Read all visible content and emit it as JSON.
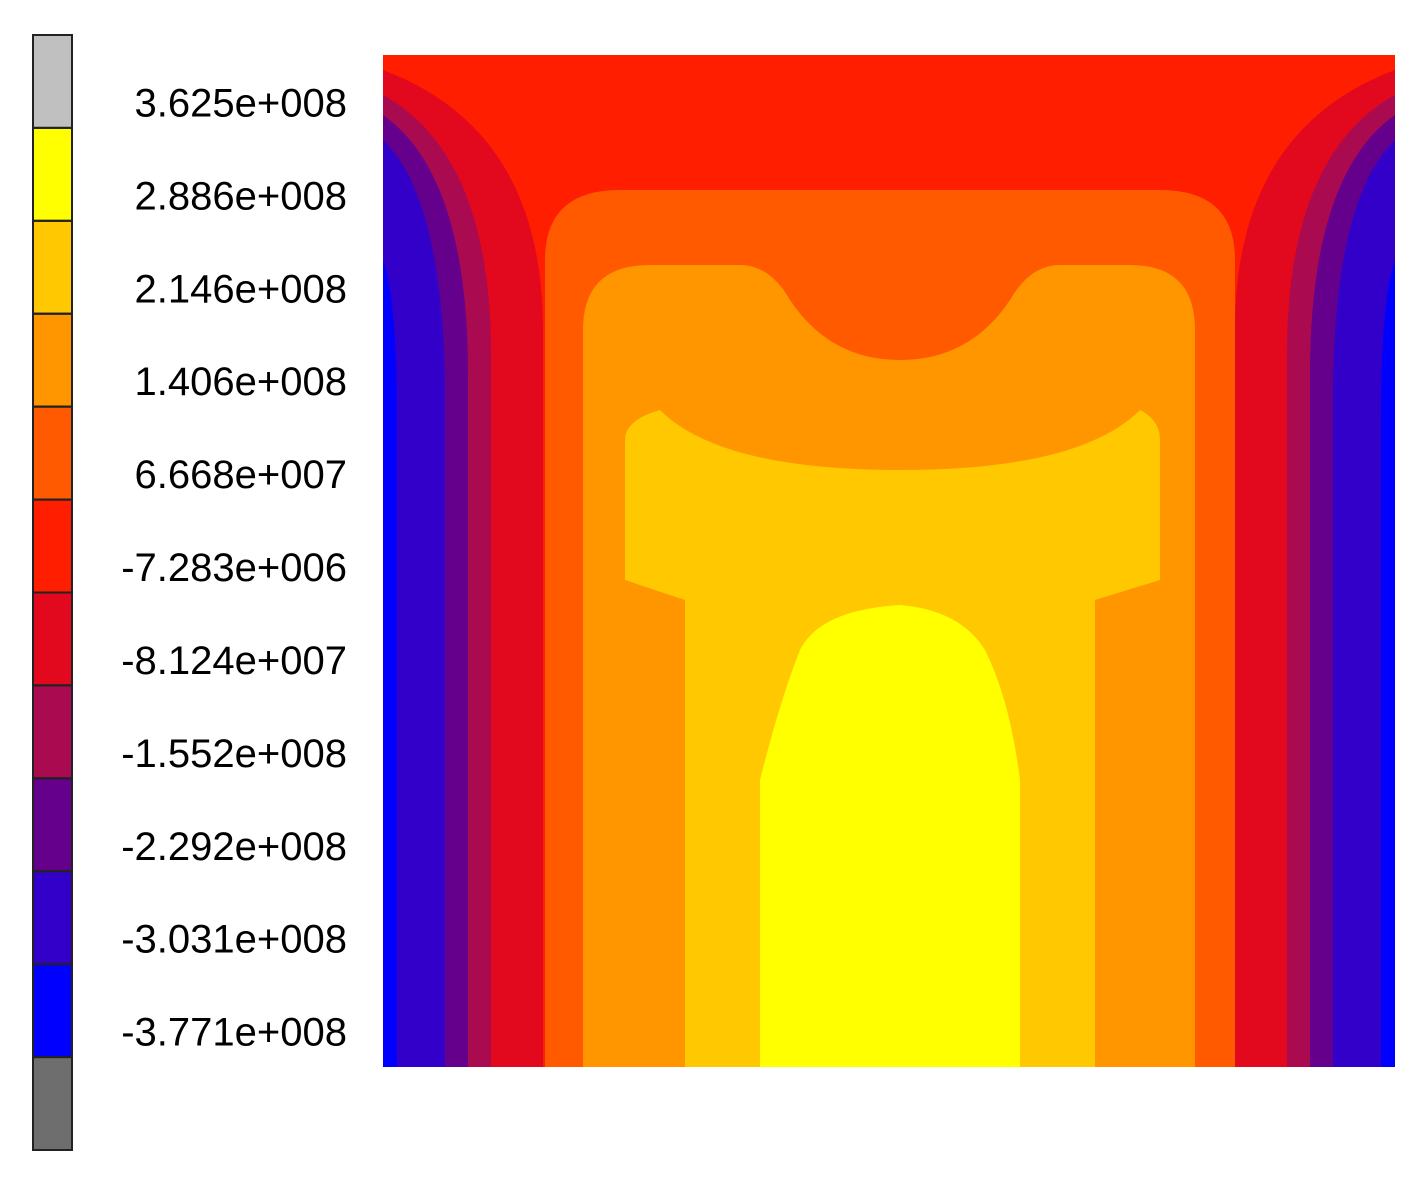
{
  "chart_data": {
    "type": "contour",
    "colorbar": {
      "levels": [
        {
          "value": 362500000,
          "label": "3.625e+008"
        },
        {
          "value": 288600000,
          "label": "2.886e+008"
        },
        {
          "value": 214600000,
          "label": "2.146e+008"
        },
        {
          "value": 140600000,
          "label": "1.406e+008"
        },
        {
          "value": 66680000,
          "label": "6.668e+007"
        },
        {
          "value": -7283000,
          "label": "-7.283e+006"
        },
        {
          "value": -81240000,
          "label": "-8.124e+007"
        },
        {
          "value": -155200000,
          "label": "-1.552e+008"
        },
        {
          "value": -229200000,
          "label": "-2.292e+008"
        },
        {
          "value": -303100000,
          "label": "-3.031e+008"
        },
        {
          "value": -377100000,
          "label": "-3.771e+008"
        }
      ],
      "colors": [
        "#c0c0c0",
        "#ffff00",
        "#ffc800",
        "#ff9600",
        "#ff5a00",
        "#ff1e00",
        "#e2081e",
        "#aa0a50",
        "#64008c",
        "#3200c8",
        "#0000ff",
        "#6e6e6e"
      ]
    }
  }
}
